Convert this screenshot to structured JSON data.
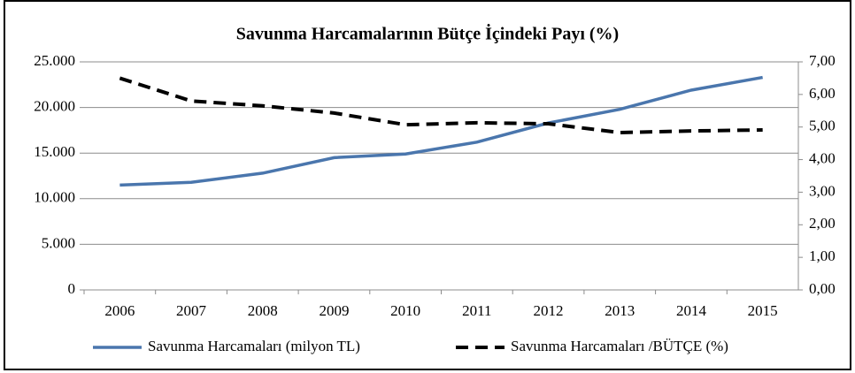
{
  "chart_data": {
    "type": "line",
    "title": "Savunma Harcamalarının Bütçe İçindeki Payı (%)",
    "categories": [
      "2006",
      "2007",
      "2008",
      "2009",
      "2010",
      "2011",
      "2012",
      "2013",
      "2014",
      "2015"
    ],
    "series": [
      {
        "name": "Savunma Harcamaları (milyon TL)",
        "color": "#4a76ad",
        "values": [
          11500,
          11800,
          12800,
          14500,
          14900,
          16200,
          18300,
          19800,
          21900,
          23300
        ]
      },
      {
        "name": "Savunma Harcamaları /BÜTÇE (%)",
        "color": "#000000",
        "axis": "y2",
        "values": [
          6.5,
          5.8,
          5.65,
          5.43,
          5.07,
          5.13,
          5.1,
          4.83,
          4.88,
          4.91
        ]
      }
    ],
    "ylim": [
      0,
      25000
    ],
    "yticks": [
      0,
      {
        "value": 5000,
        "label": "5.000"
      },
      {
        "value": 10000,
        "label": "10.000"
      },
      {
        "value": 15000,
        "label": "15.000"
      },
      {
        "value": 20000,
        "label": "20.000"
      },
      {
        "value": 25000,
        "label": "25.000"
      }
    ],
    "y2lim": [
      0,
      7
    ],
    "y2ticks": [
      {
        "value": 0,
        "label": "0,00"
      },
      {
        "value": 1,
        "label": "1,00"
      },
      {
        "value": 2,
        "label": "2,00"
      },
      {
        "value": 3,
        "label": "3,00"
      },
      {
        "value": 4,
        "label": "4,00"
      },
      {
        "value": 5,
        "label": "5,00"
      },
      {
        "value": 6,
        "label": "6,00"
      },
      {
        "value": 7,
        "label": "7,00"
      }
    ],
    "grid": true,
    "legend": "bottom"
  }
}
